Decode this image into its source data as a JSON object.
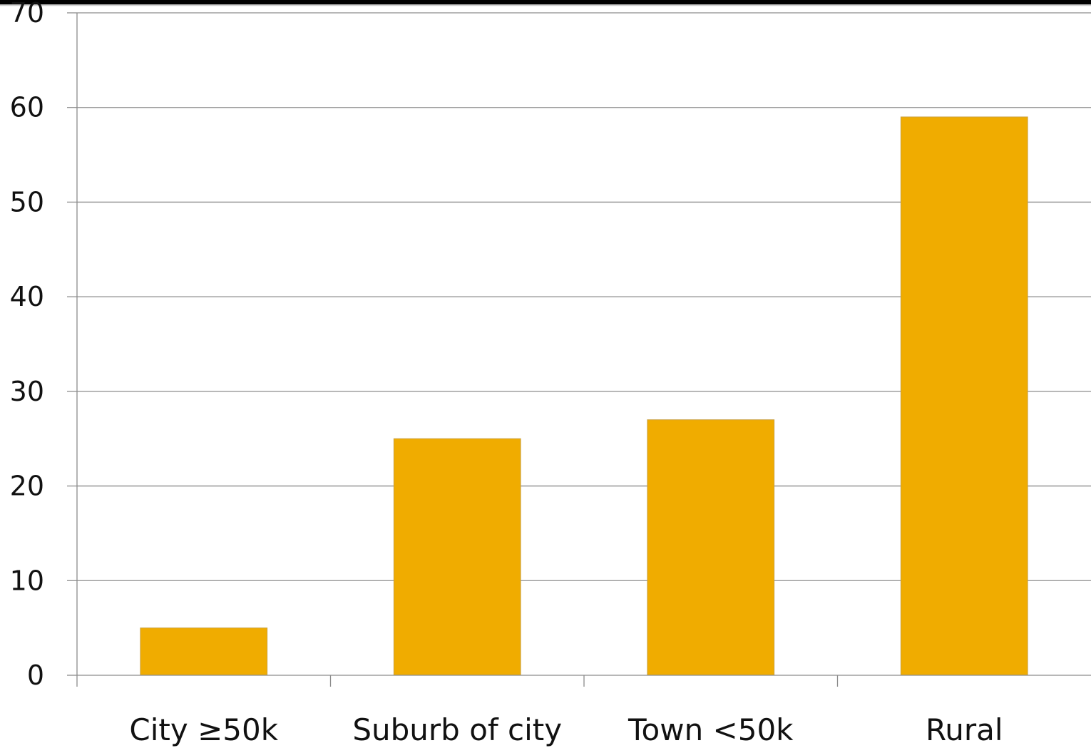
{
  "chart_data": {
    "type": "bar",
    "categories": [
      "City ≥50k",
      "Suburb of city",
      "Town <50k",
      "Rural"
    ],
    "values": [
      5,
      25,
      27,
      59
    ],
    "title": "",
    "xlabel": "",
    "ylabel": "",
    "ylim": [
      0,
      70
    ],
    "yticks": [
      "0",
      "10",
      "20",
      "30",
      "40",
      "50",
      "60",
      "70"
    ],
    "grid": true,
    "legend": "none",
    "bar_color": "#F0AC00",
    "bar_stroke": "#C9A040",
    "grid_color": "#8c8c8c",
    "axis_color": "#8c8c8c"
  }
}
